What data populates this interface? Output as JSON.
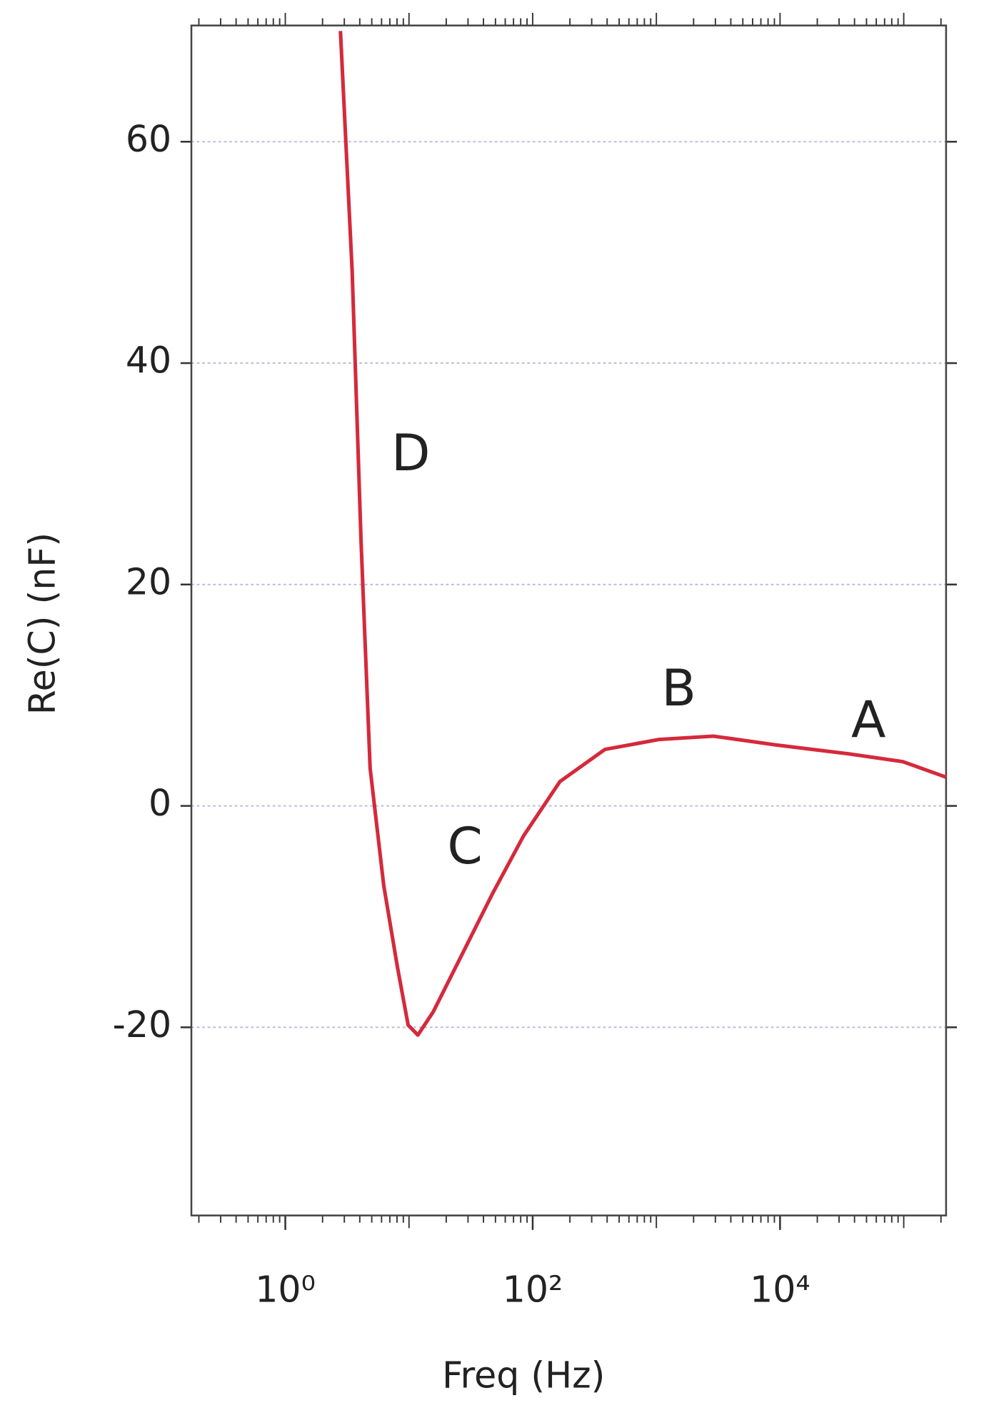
{
  "chart_data": {
    "type": "line",
    "xlabel": "Freq (Hz)",
    "ylabel": "Re(C) (nF)",
    "xscale": "log",
    "x": [
      2.79,
      3.47,
      4.1,
      4.85,
      6.25,
      8.04,
      9.84,
      11.8,
      15.7,
      26.1,
      47,
      84.5,
      166,
      384,
      1050,
      2890,
      9330,
      35900,
      98000,
      220000
    ],
    "series": [
      {
        "color": "#d42a3c",
        "values": [
          70.0,
          48.3,
          23.8,
          3.4,
          -7.2,
          -14.5,
          -19.8,
          -20.7,
          -18.6,
          -13.7,
          -8.0,
          -2.7,
          2.2,
          5.1,
          6.0,
          6.3,
          5.5,
          4.7,
          4.0,
          2.6
        ]
      }
    ],
    "xlim": [
      0.174,
      220000
    ],
    "ylim": [
      -37,
      70.5
    ],
    "xticks": [
      {
        "value": 1,
        "label": "10⁰"
      },
      {
        "value": 100,
        "label": "10²"
      },
      {
        "value": 10000,
        "label": "10⁴"
      }
    ],
    "yticks": [
      -20,
      0,
      20,
      40,
      60
    ],
    "grid": true,
    "annotations": [
      "D",
      "C",
      "B",
      "A"
    ]
  }
}
